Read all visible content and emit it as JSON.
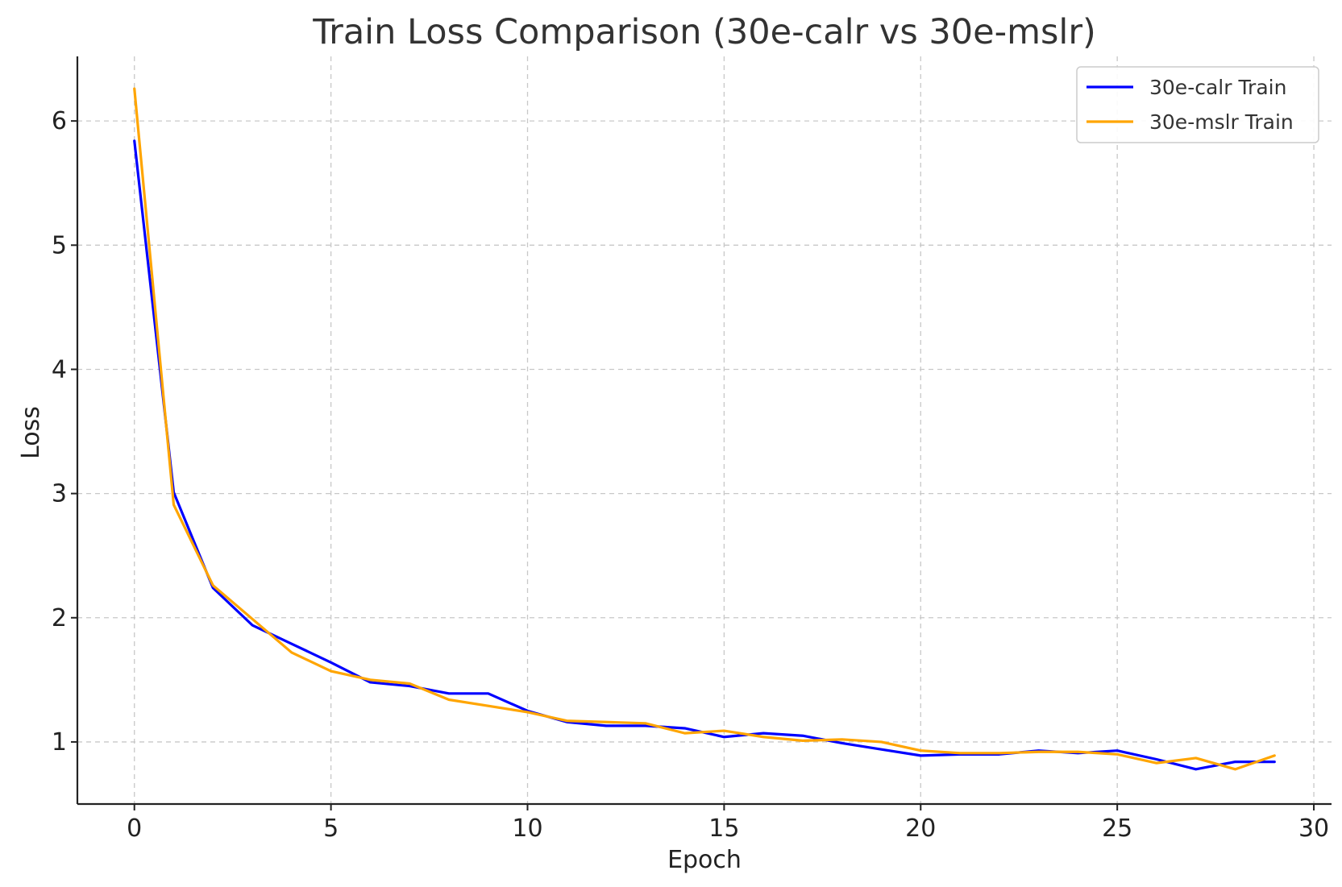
{
  "chart_data": {
    "type": "line",
    "title": "Train Loss Comparison (30e-calr vs 30e-mslr)",
    "xlabel": "Epoch",
    "ylabel": "Loss",
    "xlim": [
      -1.45,
      30.45
    ],
    "ylim": [
      0.5,
      6.52
    ],
    "xticks": [
      0,
      5,
      10,
      15,
      20,
      25,
      30
    ],
    "yticks": [
      1,
      2,
      3,
      4,
      5,
      6
    ],
    "grid": true,
    "legend_position": "top-right",
    "x": [
      0,
      1,
      2,
      3,
      4,
      5,
      6,
      7,
      8,
      9,
      10,
      11,
      12,
      13,
      14,
      15,
      16,
      17,
      18,
      19,
      20,
      21,
      22,
      23,
      24,
      25,
      26,
      27,
      28,
      29
    ],
    "series": [
      {
        "name": "30e-calr Train",
        "color": "#0000ff",
        "values": [
          5.84,
          3.01,
          2.24,
          1.94,
          1.79,
          1.64,
          1.48,
          1.45,
          1.39,
          1.39,
          1.25,
          1.16,
          1.13,
          1.13,
          1.11,
          1.04,
          1.07,
          1.05,
          0.99,
          0.94,
          0.89,
          0.9,
          0.9,
          0.93,
          0.91,
          0.93,
          0.86,
          0.78,
          0.84,
          0.84
        ]
      },
      {
        "name": "30e-mslr Train",
        "color": "#ffa500",
        "values": [
          6.26,
          2.91,
          2.26,
          1.99,
          1.72,
          1.57,
          1.5,
          1.47,
          1.34,
          1.29,
          1.24,
          1.17,
          1.16,
          1.15,
          1.07,
          1.09,
          1.04,
          1.01,
          1.02,
          1.0,
          0.93,
          0.91,
          0.91,
          0.92,
          0.92,
          0.9,
          0.83,
          0.87,
          0.78,
          0.89
        ]
      }
    ]
  }
}
